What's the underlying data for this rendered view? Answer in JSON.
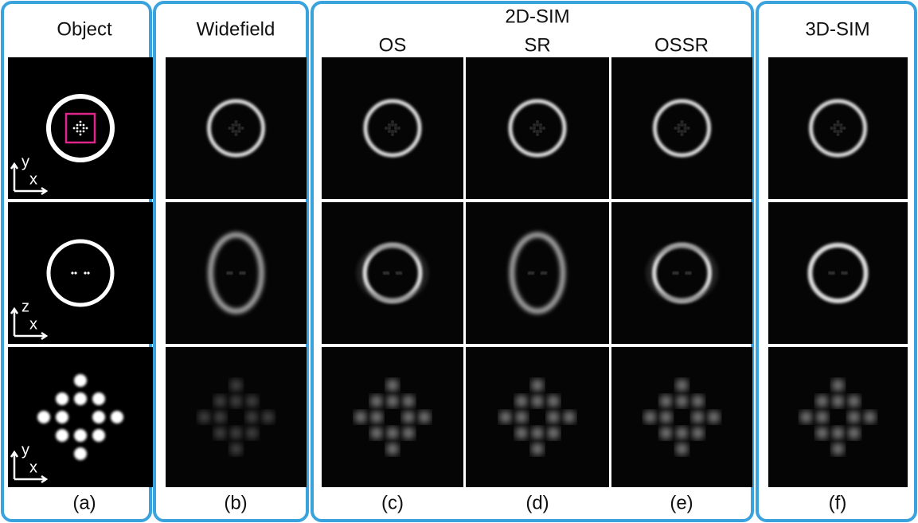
{
  "panels": [
    {
      "title": "Object",
      "caption": "(a)"
    },
    {
      "title": "Widefield",
      "caption": "(b)"
    },
    {
      "title": "2D-SIM",
      "columns": [
        {
          "label": "OS",
          "caption": "(c)"
        },
        {
          "label": "SR",
          "caption": "(d)"
        },
        {
          "label": "OSSR",
          "caption": "(e)"
        }
      ]
    },
    {
      "title": "3D-SIM",
      "caption": "(f)"
    }
  ],
  "axis_labels": [
    {
      "vertical": "y",
      "horizontal": "x"
    },
    {
      "vertical": "z",
      "horizontal": "x"
    },
    {
      "vertical": "y",
      "horizontal": "x"
    }
  ]
}
